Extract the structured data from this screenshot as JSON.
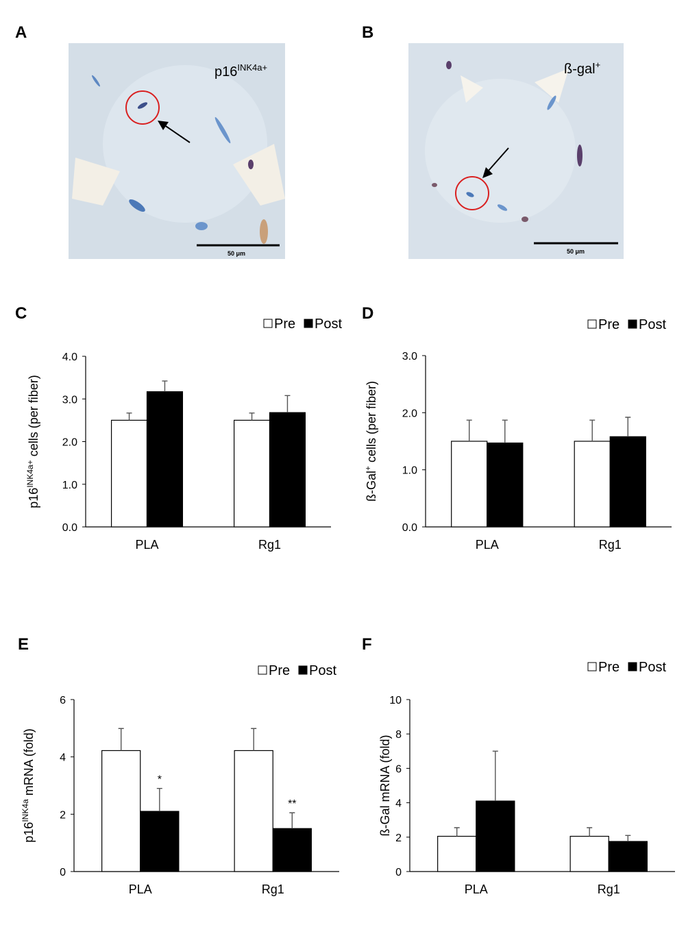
{
  "micrographs": [
    {
      "label": "A",
      "caption": [
        "p16",
        "INK4a+"
      ],
      "scale_bar": "50 μm"
    },
    {
      "label": "B",
      "caption": [
        "ß-gal",
        "+"
      ],
      "scale_bar": "50 μm"
    }
  ],
  "chart_data": [
    {
      "type": "bar",
      "panel": "C",
      "categories": [
        "PLA",
        "Rg1"
      ],
      "ylabel": [
        "p16",
        "INK4a+",
        " cells (per fiber)"
      ],
      "ylim": [
        0,
        4
      ],
      "yticks": [
        {
          "value": 0,
          "label": "0.0"
        },
        {
          "value": 1,
          "label": "1.0"
        },
        {
          "value": 2,
          "label": "2.0"
        },
        {
          "value": 3,
          "label": "3.0"
        },
        {
          "value": 4,
          "label": "4.0"
        }
      ],
      "series": [
        {
          "name": "Pre",
          "color": "#ffffff",
          "values": [
            2.5,
            2.5
          ],
          "errors": [
            0.17,
            0.17
          ]
        },
        {
          "name": "Post",
          "color": "#000000",
          "values": [
            3.17,
            2.68
          ],
          "errors": [
            0.25,
            0.4
          ]
        }
      ]
    },
    {
      "type": "bar",
      "panel": "D",
      "categories": [
        "PLA",
        "Rg1"
      ],
      "ylabel": [
        "ß-Gal",
        "+",
        " cells (per fiber)"
      ],
      "ylim": [
        0,
        3
      ],
      "yticks": [
        {
          "value": 0,
          "label": "0.0"
        },
        {
          "value": 1,
          "label": "1.0"
        },
        {
          "value": 2,
          "label": "2.0"
        },
        {
          "value": 3,
          "label": "3.0"
        }
      ],
      "series": [
        {
          "name": "Pre",
          "color": "#ffffff",
          "values": [
            1.5,
            1.5
          ],
          "errors": [
            0.37,
            0.37
          ]
        },
        {
          "name": "Post",
          "color": "#000000",
          "values": [
            1.47,
            1.58
          ],
          "errors": [
            0.4,
            0.34
          ]
        }
      ]
    },
    {
      "type": "bar",
      "panel": "E",
      "categories": [
        "PLA",
        "Rg1"
      ],
      "ylabel": [
        "p16",
        "INK4a",
        "  mRNA (fold)"
      ],
      "ylim": [
        0,
        6
      ],
      "yticks": [
        0,
        2,
        4,
        6
      ],
      "series": [
        {
          "name": "Pre",
          "color": "#ffffff",
          "values": [
            4.22,
            4.22
          ],
          "errors": [
            0.77,
            0.77
          ]
        },
        {
          "name": "Post",
          "color": "#000000",
          "values": [
            2.1,
            1.5
          ],
          "errors": [
            0.8,
            0.55
          ],
          "significance": [
            "*",
            "**"
          ]
        }
      ]
    },
    {
      "type": "bar",
      "panel": "F",
      "categories": [
        "PLA",
        "Rg1"
      ],
      "ylabel": [
        "ß-Gal mRNA (fold)"
      ],
      "ylim": [
        0,
        10
      ],
      "yticks": [
        0,
        2,
        4,
        6,
        8,
        10
      ],
      "series": [
        {
          "name": "Pre",
          "color": "#ffffff",
          "values": [
            2.05,
            2.05
          ],
          "errors": [
            0.5,
            0.5
          ]
        },
        {
          "name": "Post",
          "color": "#000000",
          "values": [
            4.1,
            1.75
          ],
          "errors": [
            2.9,
            0.35
          ]
        }
      ]
    }
  ]
}
